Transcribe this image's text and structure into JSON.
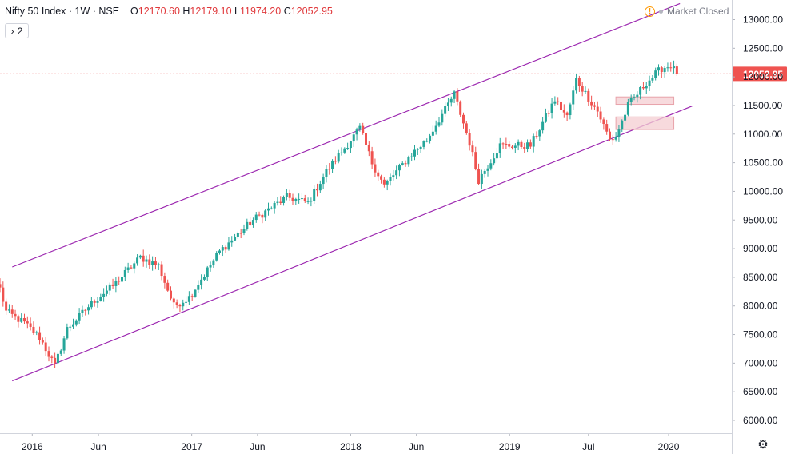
{
  "legend": {
    "title": "Nifty 50 Index · 1W · NSE",
    "open_label": "O",
    "open": "12170.60",
    "high_label": "H",
    "high": "12179.10",
    "low_label": "L",
    "low": "11974.20",
    "close_label": "C",
    "close": "12052.95"
  },
  "indicators_toggle": {
    "icon": "chevron-right-icon",
    "count": "2"
  },
  "status": {
    "icon": "warning-icon",
    "text": "Market Closed"
  },
  "settings_icon": "gear-icon",
  "colors": {
    "up": "#26a69a",
    "down": "#ef5350",
    "channel": "#9c27b0",
    "zone": "#f4cdd1",
    "price_line": "#e53935",
    "price_label": "#ef5350"
  },
  "chart_data": {
    "type": "candlestick",
    "title": "Nifty 50 Index · 1W · NSE",
    "yaxis": {
      "ticks": [
        "6000.00",
        "6500.00",
        "7000.00",
        "7500.00",
        "8000.00",
        "8500.00",
        "9000.00",
        "9500.00",
        "10000.00",
        "10500.00",
        "11000.00",
        "11500.00",
        "12000.00",
        "12500.00",
        "13000.00"
      ],
      "ylim": [
        5600,
        13300
      ]
    },
    "xaxis": {
      "ticks": [
        {
          "label": "2016",
          "date": "2016-01-01"
        },
        {
          "label": "Jun",
          "date": "2016-06-01"
        },
        {
          "label": "2017",
          "date": "2017-01-01"
        },
        {
          "label": "Jun",
          "date": "2017-06-01"
        },
        {
          "label": "2018",
          "date": "2018-01-01"
        },
        {
          "label": "Jun",
          "date": "2018-06-01"
        },
        {
          "label": "2019",
          "date": "2019-01-01"
        },
        {
          "label": "Jul",
          "date": "2019-07-01"
        },
        {
          "label": "2020",
          "date": "2020-01-01"
        }
      ],
      "xlim": [
        "2015-10-19",
        "2020-05-25"
      ]
    },
    "last_price": 12052.95,
    "last_price_label": "12052.95",
    "channel_lines": [
      {
        "name": "upper",
        "points": [
          [
            "2015-11-16",
            8680
          ],
          [
            "2020-01-27",
            13280
          ]
        ]
      },
      {
        "name": "lower",
        "points": [
          [
            "2015-11-16",
            6690
          ],
          [
            "2020-02-24",
            11490
          ]
        ]
      }
    ],
    "zones": [
      {
        "from_date": "2019-09-02",
        "to_date": "2020-01-13",
        "low": 11520,
        "high": 11650
      },
      {
        "from_date": "2019-09-02",
        "to_date": "2020-01-13",
        "low": 11080,
        "high": 11300
      }
    ],
    "anchors": [
      [
        "2015-10-19",
        8300
      ],
      [
        "2015-11-02",
        7900
      ],
      [
        "2015-12-14",
        7700
      ],
      [
        "2016-01-18",
        7450
      ],
      [
        "2016-02-22",
        6950
      ],
      [
        "2016-03-21",
        7600
      ],
      [
        "2016-05-23",
        8100
      ],
      [
        "2016-07-04",
        8350
      ],
      [
        "2016-09-05",
        8850
      ],
      [
        "2016-10-17",
        8700
      ],
      [
        "2016-11-21",
        8000
      ],
      [
        "2016-12-26",
        8150
      ],
      [
        "2017-03-06",
        8950
      ],
      [
        "2017-05-22",
        9500
      ],
      [
        "2017-08-07",
        9900
      ],
      [
        "2017-09-25",
        9800
      ],
      [
        "2017-11-06",
        10350
      ],
      [
        "2018-01-22",
        11100
      ],
      [
        "2018-02-19",
        10500
      ],
      [
        "2018-03-19",
        10100
      ],
      [
        "2018-05-21",
        10650
      ],
      [
        "2018-06-25",
        10900
      ],
      [
        "2018-08-27",
        11700
      ],
      [
        "2018-10-01",
        10850
      ],
      [
        "2018-10-22",
        10200
      ],
      [
        "2018-12-10",
        10800
      ],
      [
        "2019-02-18",
        10800
      ],
      [
        "2019-04-15",
        11600
      ],
      [
        "2019-05-13",
        11300
      ],
      [
        "2019-06-03",
        11950
      ],
      [
        "2019-07-22",
        11400
      ],
      [
        "2019-08-19",
        10900
      ],
      [
        "2019-09-02",
        10950
      ],
      [
        "2019-09-30",
        11500
      ],
      [
        "2019-11-11",
        11900
      ],
      [
        "2019-12-16",
        12150
      ],
      [
        "2020-01-06",
        12200
      ],
      [
        "2020-01-20",
        12052.95
      ]
    ]
  }
}
